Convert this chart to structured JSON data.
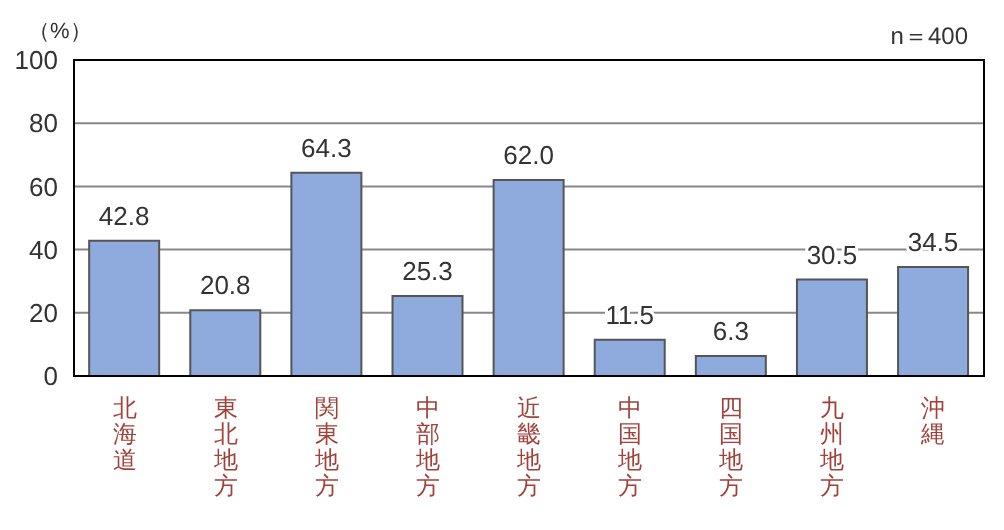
{
  "chart_data": {
    "type": "bar",
    "ylabel": "（%）",
    "annotations": [
      "n＝400"
    ],
    "categories": [
      "北海道",
      "東北地方",
      "関東地方",
      "中部地方",
      "近畿地方",
      "中国地方",
      "四国地方",
      "九州地方",
      "沖縄"
    ],
    "values": [
      42.8,
      20.8,
      64.3,
      25.3,
      62.0,
      11.5,
      6.3,
      30.5,
      34.5
    ],
    "value_labels": [
      "42.8",
      "20.8",
      "64.3",
      "25.3",
      "62.0",
      "11.5",
      "6.3",
      "30.5",
      "34.5"
    ],
    "color": "#8faadc",
    "ylim": [
      0,
      100
    ],
    "yticks": [
      0,
      20,
      40,
      60,
      80,
      100
    ],
    "grid": "y"
  }
}
